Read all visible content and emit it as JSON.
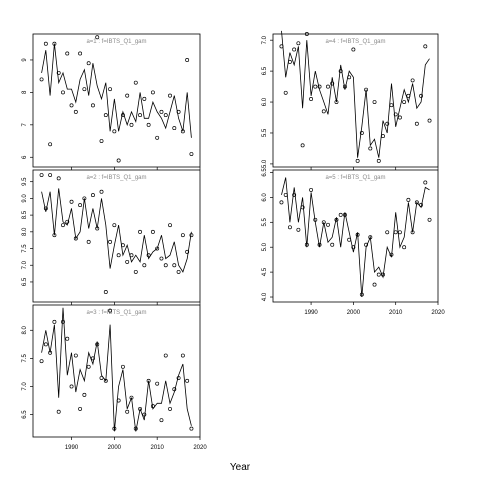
{
  "chart_data": {
    "xlabel": "Year",
    "colors": {
      "line": "#000000",
      "points": "#000000",
      "title": "#8a8a8a",
      "frame": "#000000"
    },
    "panels": [
      {
        "title": "a=1 : f=IBTS_Q1_gam",
        "type": "line+scatter",
        "xlim": [
          1981,
          2020
        ],
        "ylim": [
          5.7,
          9.8
        ],
        "xticks": [
          1990,
          2000,
          2010,
          2020
        ],
        "show_xticklabels": false,
        "yticks": [
          6,
          7,
          8,
          9
        ],
        "yticklabels": [
          "6",
          "7",
          "8",
          "9"
        ],
        "line": {
          "x": [
            1983,
            1984,
            1985,
            1986,
            1987,
            1988,
            1989,
            1990,
            1991,
            1992,
            1993,
            1994,
            1995,
            1996,
            1997,
            1998,
            1999,
            2000,
            2001,
            2002,
            2003,
            2004,
            2005,
            2006,
            2007,
            2008,
            2009,
            2010,
            2011,
            2012,
            2013,
            2014,
            2015,
            2016,
            2017,
            2018
          ],
          "y": [
            8.6,
            9.3,
            7.9,
            9.5,
            8.3,
            8.6,
            8.1,
            8.1,
            7.7,
            8.4,
            8.7,
            7.9,
            8.9,
            8.2,
            7.8,
            8.3,
            6.8,
            7.8,
            6.8,
            7.4,
            7.0,
            7.4,
            7.1,
            8.0,
            7.2,
            7.2,
            7.7,
            7.4,
            7.2,
            6.9,
            7.4,
            7.9,
            7.2,
            6.8,
            8.0,
            6.6
          ]
        },
        "points": {
          "x": [
            1983,
            1984,
            1985,
            1986,
            1987,
            1988,
            1989,
            1990,
            1991,
            1992,
            1993,
            1994,
            1995,
            1996,
            1997,
            1998,
            1999,
            2000,
            2001,
            2002,
            2003,
            2004,
            2005,
            2006,
            2007,
            2008,
            2009,
            2010,
            2011,
            2012,
            2013,
            2014,
            2015,
            2016,
            2017,
            2018
          ],
          "y": [
            8.4,
            9.5,
            6.4,
            9.5,
            8.6,
            8.0,
            9.2,
            7.6,
            7.4,
            9.2,
            8.1,
            8.9,
            7.6,
            9.7,
            6.5,
            7.3,
            8.1,
            6.8,
            5.9,
            7.3,
            7.9,
            7.0,
            8.3,
            7.3,
            7.8,
            7.0,
            8.0,
            6.6,
            7.4,
            7.3,
            7.9,
            6.9,
            7.4,
            6.8,
            9.0,
            6.1
          ]
        }
      },
      {
        "title": "a=2 : f=IBTS_Q1_gam",
        "type": "line+scatter",
        "xlim": [
          1981,
          2020
        ],
        "ylim": [
          5.9,
          9.85
        ],
        "xticks": [
          1990,
          2000,
          2010,
          2020
        ],
        "show_xticklabels": false,
        "yticks": [
          6.5,
          7.0,
          7.5,
          8.0,
          8.5,
          9.0,
          9.5
        ],
        "yticklabels": [
          "6.5",
          "7.0",
          "7.5",
          "8.0",
          "8.5",
          "9.0",
          "9.5"
        ],
        "line": {
          "x": [
            1983,
            1984,
            1985,
            1986,
            1987,
            1988,
            1989,
            1990,
            1991,
            1992,
            1993,
            1994,
            1995,
            1996,
            1997,
            1998,
            1999,
            2000,
            2001,
            2002,
            2003,
            2004,
            2005,
            2006,
            2007,
            2008,
            2009,
            2010,
            2011,
            2012,
            2013,
            2014,
            2015,
            2016,
            2017,
            2018
          ],
          "y": [
            9.2,
            8.6,
            9.2,
            7.9,
            9.3,
            8.3,
            8.2,
            8.7,
            7.8,
            8.0,
            9.0,
            8.1,
            8.7,
            8.1,
            9.0,
            8.2,
            6.9,
            7.6,
            8.2,
            7.3,
            7.6,
            7.1,
            7.3,
            7.1,
            7.9,
            7.2,
            7.4,
            7.5,
            7.9,
            7.2,
            7.3,
            7.7,
            7.0,
            6.8,
            7.2,
            8.0
          ]
        },
        "points": {
          "x": [
            1983,
            1984,
            1985,
            1986,
            1987,
            1988,
            1989,
            1990,
            1991,
            1992,
            1993,
            1994,
            1995,
            1996,
            1997,
            1998,
            1999,
            2000,
            2001,
            2002,
            2003,
            2004,
            2005,
            2006,
            2007,
            2008,
            2009,
            2010,
            2011,
            2012,
            2013,
            2014,
            2015,
            2016,
            2017,
            2018
          ],
          "y": [
            9.7,
            8.7,
            9.7,
            7.9,
            9.6,
            8.2,
            8.3,
            8.9,
            7.8,
            8.8,
            9.0,
            7.7,
            9.1,
            8.1,
            9.2,
            6.2,
            7.7,
            8.2,
            7.3,
            7.6,
            7.1,
            7.3,
            6.8,
            8.0,
            7.0,
            7.3,
            8.0,
            7.5,
            7.2,
            7.0,
            8.2,
            7.0,
            6.8,
            7.9,
            7.4,
            7.9
          ]
        }
      },
      {
        "title": "a=3 : f=IBTS_Q1_gam",
        "type": "line+scatter",
        "xlim": [
          1981,
          2020
        ],
        "ylim": [
          6.1,
          8.45
        ],
        "xticks": [
          1990,
          2000,
          2010,
          2020
        ],
        "xticklabels": [
          "1990",
          "2000",
          "2010",
          "2020"
        ],
        "show_xticklabels": true,
        "yticks": [
          6.5,
          7.0,
          7.5,
          8.0
        ],
        "yticklabels": [
          "6.5",
          "7.0",
          "7.5",
          "8.0"
        ],
        "line": {
          "x": [
            1983,
            1984,
            1985,
            1986,
            1987,
            1988,
            1989,
            1990,
            1991,
            1992,
            1993,
            1994,
            1995,
            1996,
            1997,
            1998,
            1999,
            2000,
            2001,
            2002,
            2003,
            2004,
            2005,
            2006,
            2007,
            2008,
            2009,
            2010,
            2011,
            2012,
            2013,
            2014,
            2015,
            2016,
            2017,
            2018
          ],
          "y": [
            7.6,
            8.0,
            7.6,
            8.1,
            6.8,
            8.4,
            7.2,
            7.6,
            6.9,
            7.3,
            7.1,
            7.6,
            7.4,
            7.8,
            7.2,
            7.1,
            8.1,
            6.2,
            7.0,
            7.3,
            6.6,
            6.8,
            6.2,
            6.6,
            6.4,
            7.1,
            6.6,
            6.7,
            6.7,
            7.1,
            6.7,
            6.9,
            7.2,
            7.4,
            6.6,
            6.3
          ]
        },
        "points": {
          "x": [
            1983,
            1984,
            1985,
            1986,
            1987,
            1988,
            1989,
            1990,
            1991,
            1992,
            1993,
            1994,
            1995,
            1996,
            1997,
            1998,
            1999,
            2000,
            2001,
            2002,
            2003,
            2004,
            2005,
            2006,
            2007,
            2008,
            2009,
            2010,
            2011,
            2012,
            2013,
            2014,
            2015,
            2016,
            2017,
            2018
          ],
          "y": [
            7.45,
            7.75,
            7.6,
            8.15,
            6.55,
            8.15,
            7.85,
            7.0,
            7.55,
            6.6,
            6.85,
            7.35,
            7.5,
            7.75,
            7.15,
            7.1,
            8.35,
            6.25,
            6.75,
            7.35,
            6.55,
            6.8,
            6.25,
            6.6,
            6.5,
            7.1,
            6.65,
            7.05,
            6.4,
            7.55,
            6.6,
            6.95,
            7.15,
            7.55,
            7.1,
            6.25
          ]
        }
      },
      {
        "title": "a=4 : f=IBTS_Q1_gam",
        "type": "line+scatter",
        "xlim": [
          1981,
          2020
        ],
        "ylim": [
          4.95,
          7.1
        ],
        "xticks": [
          1990,
          2000,
          2010,
          2020
        ],
        "show_xticklabels": false,
        "yticks": [
          5.0,
          5.5,
          6.0,
          6.5,
          7.0
        ],
        "yticklabels": [
          "5.0",
          "5.5",
          "6.0",
          "6.5",
          "7.0"
        ],
        "line": {
          "x": [
            1983,
            1984,
            1985,
            1986,
            1987,
            1988,
            1989,
            1990,
            1991,
            1992,
            1993,
            1994,
            1995,
            1996,
            1997,
            1998,
            1999,
            2000,
            2001,
            2002,
            2003,
            2004,
            2005,
            2006,
            2007,
            2008,
            2009,
            2010,
            2011,
            2012,
            2013,
            2014,
            2015,
            2016,
            2017,
            2018
          ],
          "y": [
            7.15,
            6.4,
            6.8,
            6.6,
            6.9,
            5.9,
            7.0,
            6.1,
            6.5,
            6.2,
            6.0,
            5.8,
            6.4,
            6.0,
            6.6,
            6.2,
            6.5,
            6.4,
            5.1,
            5.6,
            6.2,
            5.3,
            5.4,
            5.1,
            5.7,
            5.5,
            6.3,
            5.6,
            5.9,
            6.2,
            6.0,
            6.3,
            5.9,
            6.0,
            6.6,
            6.7
          ]
        },
        "points": {
          "x": [
            1983,
            1984,
            1985,
            1986,
            1987,
            1988,
            1989,
            1990,
            1991,
            1992,
            1993,
            1994,
            1995,
            1996,
            1997,
            1998,
            1999,
            2000,
            2001,
            2002,
            2003,
            2004,
            2005,
            2006,
            2007,
            2008,
            2009,
            2010,
            2011,
            2012,
            2013,
            2014,
            2015,
            2016,
            2017,
            2018
          ],
          "y": [
            6.9,
            6.15,
            6.65,
            6.85,
            6.95,
            5.3,
            7.1,
            6.05,
            6.25,
            6.25,
            5.85,
            6.25,
            6.3,
            6.0,
            6.5,
            6.25,
            6.4,
            6.85,
            5.05,
            5.5,
            6.2,
            5.25,
            6.0,
            5.05,
            5.45,
            5.65,
            5.95,
            5.8,
            5.75,
            6.0,
            6.1,
            6.35,
            5.65,
            6.1,
            6.9,
            5.7
          ]
        }
      },
      {
        "title": "a=5 : f=IBTS_Q1_gam",
        "type": "line+scatter",
        "xlim": [
          1981,
          2020
        ],
        "ylim": [
          3.9,
          6.55
        ],
        "xticks": [
          1990,
          2000,
          2010,
          2020
        ],
        "xticklabels": [
          "1990",
          "2000",
          "2010",
          "2020"
        ],
        "show_xticklabels": true,
        "yticks": [
          4.0,
          4.5,
          5.0,
          5.5,
          6.0,
          6.5
        ],
        "yticklabels": [
          "4.0",
          "4.5",
          "5.0",
          "5.5",
          "6.0",
          "6.5"
        ],
        "line": {
          "x": [
            1983,
            1984,
            1985,
            1986,
            1987,
            1988,
            1989,
            1990,
            1991,
            1992,
            1993,
            1994,
            1995,
            1996,
            1997,
            1998,
            1999,
            2000,
            2001,
            2002,
            2003,
            2004,
            2005,
            2006,
            2007,
            2008,
            2009,
            2010,
            2011,
            2012,
            2013,
            2014,
            2015,
            2016,
            2017,
            2018
          ],
          "y": [
            6.05,
            6.4,
            5.5,
            6.2,
            5.5,
            6.0,
            5.0,
            6.1,
            5.5,
            5.0,
            5.5,
            5.1,
            5.2,
            5.6,
            5.0,
            5.7,
            5.3,
            4.9,
            5.3,
            4.0,
            5.0,
            5.2,
            4.5,
            4.6,
            4.4,
            5.0,
            4.8,
            5.7,
            5.0,
            5.2,
            5.9,
            5.3,
            5.9,
            5.8,
            6.2,
            6.15
          ]
        },
        "points": {
          "x": [
            1983,
            1984,
            1985,
            1986,
            1987,
            1988,
            1989,
            1990,
            1991,
            1992,
            1993,
            1994,
            1995,
            1996,
            1997,
            1998,
            1999,
            2000,
            2001,
            2002,
            2003,
            2004,
            2005,
            2006,
            2007,
            2008,
            2009,
            2010,
            2011,
            2012,
            2013,
            2014,
            2015,
            2016,
            2017,
            2018
          ],
          "y": [
            5.9,
            6.05,
            5.4,
            6.05,
            5.35,
            5.8,
            5.05,
            6.15,
            5.55,
            5.05,
            5.5,
            5.45,
            5.05,
            5.55,
            5.65,
            5.65,
            5.15,
            5.0,
            5.25,
            4.05,
            5.05,
            5.2,
            4.25,
            4.45,
            4.45,
            5.3,
            4.85,
            5.3,
            5.3,
            5.0,
            5.95,
            5.3,
            5.9,
            5.85,
            6.3,
            5.55
          ]
        }
      }
    ]
  }
}
